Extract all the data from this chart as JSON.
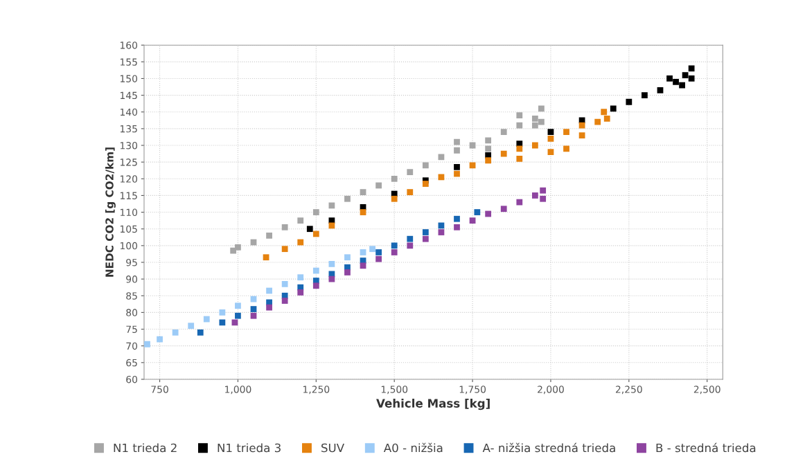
{
  "chart_data": {
    "type": "scatter",
    "xlabel": "Vehicle Mass [kg]",
    "ylabel": "NEDC CO2 [g CO2/km]",
    "xlim": [
      700,
      2550
    ],
    "xticks": [
      {
        "value": 750,
        "label": "750"
      },
      {
        "value": 1000,
        "label": "1,000"
      },
      {
        "value": 1250,
        "label": "1,250"
      },
      {
        "value": 1500,
        "label": "1,500"
      },
      {
        "value": 1750,
        "label": "1,750"
      },
      {
        "value": 2000,
        "label": "2,000"
      },
      {
        "value": 2250,
        "label": "2,250"
      },
      {
        "value": 2500,
        "label": "2,500"
      }
    ],
    "ylim": [
      60,
      160
    ],
    "yticks": [
      60,
      65,
      70,
      75,
      80,
      85,
      90,
      95,
      100,
      105,
      110,
      115,
      120,
      125,
      130,
      135,
      140,
      145,
      150,
      155,
      160
    ],
    "grid": true,
    "legend": "bottom",
    "marker": "square",
    "series": [
      {
        "name": "N1 trieda 2",
        "color": "#a6a6a6",
        "x": [
          985,
          1000,
          1050,
          1100,
          1150,
          1200,
          1250,
          1300,
          1350,
          1400,
          1450,
          1500,
          1550,
          1600,
          1650,
          1700,
          1750,
          1800,
          1850,
          1900,
          1950,
          1970,
          1700,
          1800,
          1900,
          1950,
          1970
        ],
        "values": [
          98.5,
          99.5,
          101,
          103,
          105.5,
          107.5,
          110,
          112,
          114,
          116,
          118,
          120,
          122,
          124,
          126.5,
          128.5,
          130,
          131.5,
          134,
          136,
          138,
          141,
          131,
          129,
          139,
          136,
          137
        ]
      },
      {
        "name": "N1 trieda 3",
        "color": "#000000",
        "x": [
          1230,
          1300,
          1400,
          1500,
          1600,
          1700,
          1800,
          1900,
          2000,
          2100,
          2200,
          2250,
          2300,
          2350,
          2400,
          2430,
          2450,
          2450,
          2420,
          2380
        ],
        "values": [
          105,
          107.5,
          111.5,
          115.5,
          119.5,
          123.5,
          127,
          130.5,
          134,
          137.5,
          141,
          143,
          145,
          146.5,
          149,
          151,
          153,
          150,
          148,
          150
        ]
      },
      {
        "name": "SUV",
        "color": "#e5820f",
        "x": [
          1090,
          1150,
          1200,
          1250,
          1300,
          1400,
          1500,
          1550,
          1600,
          1650,
          1700,
          1750,
          1800,
          1850,
          1900,
          1950,
          2000,
          2050,
          2100,
          2150,
          2170,
          2180,
          1900,
          2000,
          2100,
          2050
        ],
        "values": [
          96.5,
          99,
          101,
          103.5,
          106,
          110,
          114,
          116,
          118.5,
          120.5,
          121.5,
          124,
          125.5,
          127.5,
          129,
          130,
          132,
          134,
          136,
          137,
          140,
          138,
          126,
          128,
          133,
          129
        ]
      },
      {
        "name": "A0 - nižšia",
        "color": "#9ccbf7",
        "x": [
          710,
          750,
          800,
          850,
          900,
          950,
          1000,
          1050,
          1100,
          1150,
          1200,
          1250,
          1300,
          1350,
          1400,
          1430
        ],
        "values": [
          70.5,
          72,
          74,
          76,
          78,
          80,
          82,
          84,
          86.5,
          88.5,
          90.5,
          92.5,
          94.5,
          96.5,
          98,
          99
        ]
      },
      {
        "name": "A- nižšia stredná trieda",
        "color": "#1767b3",
        "x": [
          880,
          950,
          1000,
          1050,
          1100,
          1150,
          1200,
          1250,
          1300,
          1350,
          1400,
          1450,
          1500,
          1550,
          1600,
          1650,
          1700,
          1765
        ],
        "values": [
          74,
          77,
          79,
          81,
          83,
          85,
          87.5,
          89.5,
          91.5,
          93.5,
          95.5,
          98,
          100,
          102,
          104,
          106,
          108,
          110
        ]
      },
      {
        "name": "B - stredná trieda",
        "color": "#8e44a0",
        "x": [
          990,
          1050,
          1100,
          1150,
          1200,
          1250,
          1300,
          1350,
          1400,
          1450,
          1500,
          1550,
          1600,
          1650,
          1700,
          1750,
          1800,
          1850,
          1900,
          1950,
          1975,
          1975
        ],
        "values": [
          77,
          79,
          81.5,
          83.5,
          86,
          88,
          90,
          92,
          94,
          96,
          98,
          100,
          102,
          104,
          105.5,
          107.5,
          109.5,
          111,
          113,
          115,
          116.5,
          114
        ]
      }
    ]
  }
}
